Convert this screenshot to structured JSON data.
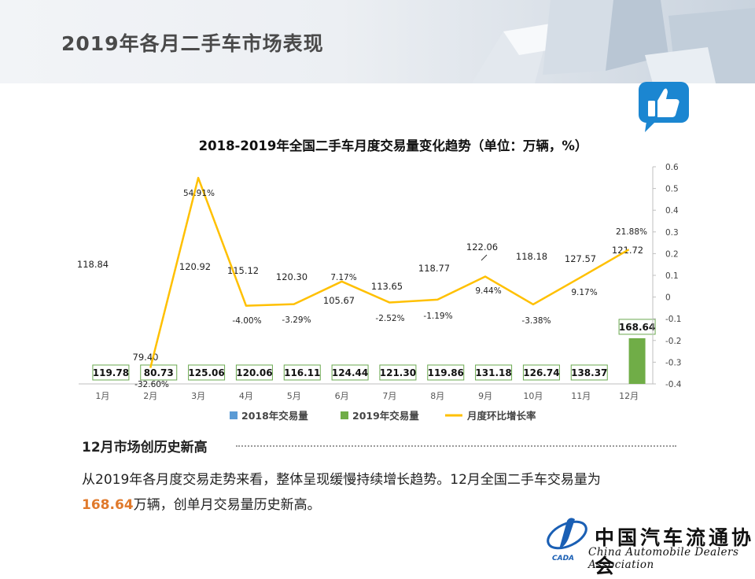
{
  "header": {
    "title": "2019年各月二手车市场表现"
  },
  "chart_data": {
    "type": "bar",
    "title": "2018-2019年全国二手车月度交易量变化趋势（单位：万辆，%）",
    "categories": [
      "1月",
      "2月",
      "3月",
      "4月",
      "5月",
      "6月",
      "7月",
      "8月",
      "9月",
      "10月",
      "11月",
      "12月"
    ],
    "series": [
      {
        "name": "2018年交易量",
        "type": "bar",
        "color": "#5b9bd5",
        "values": [
          118.84,
          79.4,
          120.92,
          115.12,
          120.3,
          105.67,
          113.65,
          118.77,
          122.06,
          118.18,
          127.57,
          121.72
        ],
        "labels": [
          "118.84",
          "79.40",
          "120.92",
          "115.12",
          "120.30",
          "105.67",
          "113.65",
          "118.77",
          "122.06",
          "118.18",
          "127.57",
          "121.72"
        ]
      },
      {
        "name": "2019年交易量",
        "type": "bar",
        "color": "#70ad47",
        "values": [
          119.78,
          80.73,
          125.06,
          120.06,
          116.11,
          124.44,
          121.3,
          119.86,
          131.18,
          126.74,
          138.37,
          168.64
        ],
        "labels": [
          "119.78",
          "80.73",
          "125.06",
          "120.06",
          "116.11",
          "124.44",
          "121.30",
          "119.86",
          "131.18",
          "126.74",
          "138.37",
          "168.64"
        ]
      },
      {
        "name": "月度环比增长率",
        "type": "line",
        "axis": "right",
        "color": "#ffc000",
        "values": [
          null,
          -0.326,
          0.5491,
          -0.04,
          -0.0329,
          0.0717,
          -0.0252,
          -0.0119,
          0.0944,
          -0.0338,
          0.0917,
          0.2188
        ],
        "labels": [
          "",
          "-32.60%",
          "54.91%",
          "-4.00%",
          "-3.29%",
          "7.17%",
          "-2.52%",
          "-1.19%",
          "9.44%",
          "-3.38%",
          "9.17%",
          "21.88%"
        ]
      }
    ],
    "y_right": {
      "range": [
        -0.4,
        0.6
      ],
      "ticks": [
        "0.6",
        "0.5",
        "0.4",
        "0.3",
        "0.2",
        "0.1",
        "0",
        "-0.1",
        "-0.2",
        "-0.3",
        "-0.4"
      ]
    },
    "legend_position": "bottom"
  },
  "section": {
    "title": "12月市场创历史新高",
    "text_before": "从2019年各月度交易走势来看，整体呈现缓慢持续增长趋势。12月全国二手车交易量为",
    "highlight": "168.64",
    "text_after": "万辆，创单月交易量历史新高。"
  },
  "logo": {
    "cn": "中国汽车流通协会",
    "en": "China Automobile Dealers Association",
    "abbr": "CADA"
  }
}
